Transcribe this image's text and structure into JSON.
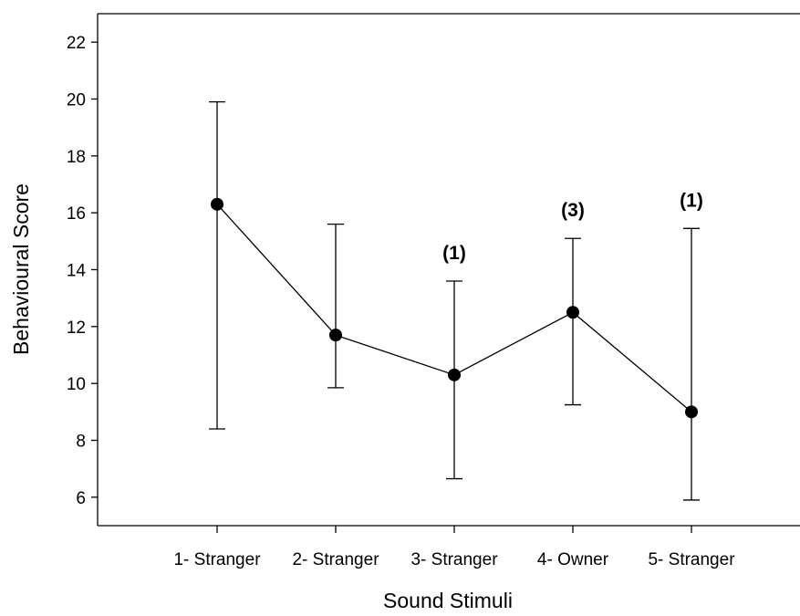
{
  "chart_data": {
    "type": "line",
    "xlabel": "Sound Stimuli",
    "ylabel": "Behavioural Score",
    "categories": [
      "1- Stranger",
      "2- Stranger",
      "3- Stranger",
      "4- Owner",
      "5- Stranger"
    ],
    "series": [
      {
        "values": [
          16.3,
          11.7,
          10.3,
          12.5,
          9.0
        ],
        "error_low": [
          8.4,
          9.85,
          6.65,
          9.25,
          5.9
        ],
        "error_high": [
          19.9,
          15.6,
          13.6,
          15.1,
          15.45
        ]
      }
    ],
    "annotations": [
      {
        "category": "3- Stranger",
        "text": "(1)"
      },
      {
        "category": "4- Owner",
        "text": "(3)"
      },
      {
        "category": "5- Stranger",
        "text": "(1)"
      }
    ],
    "ylim": [
      5,
      23
    ],
    "yticks": [
      6,
      8,
      10,
      12,
      14,
      16,
      18,
      20,
      22
    ],
    "grid": false,
    "marker": "filled-circle",
    "line_color": "#000000"
  }
}
